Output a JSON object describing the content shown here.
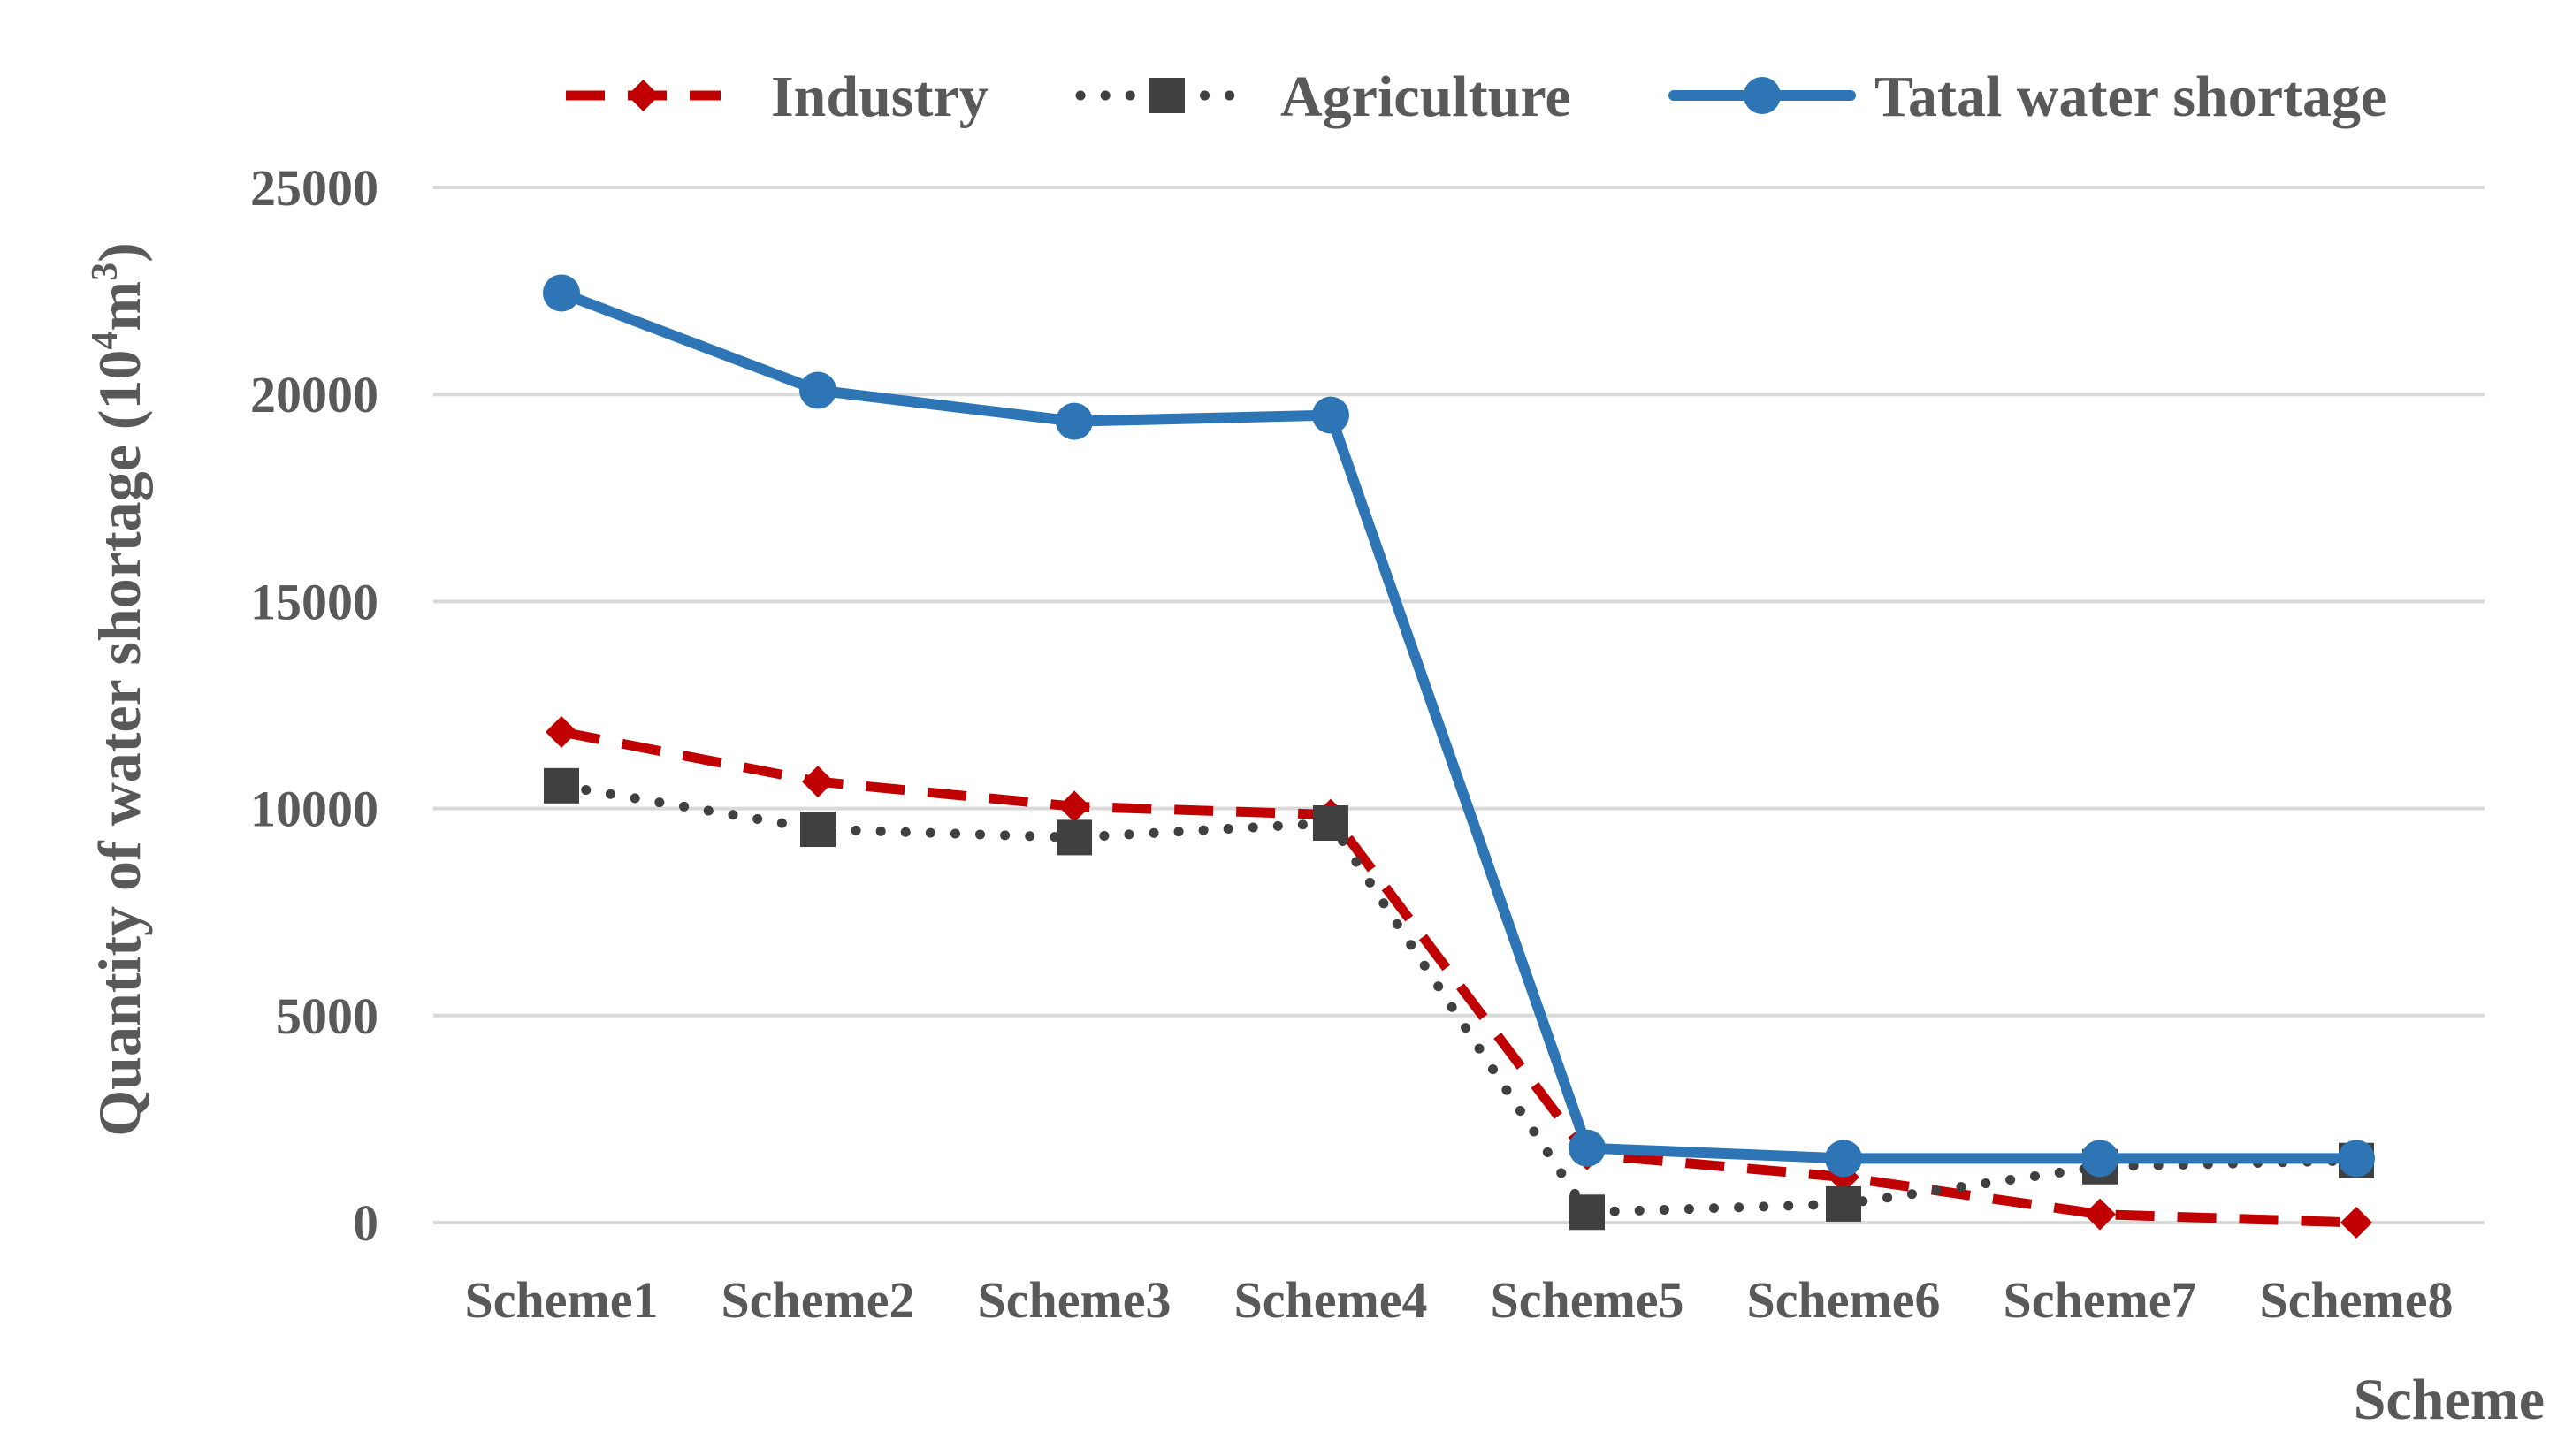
{
  "chart_data": {
    "type": "line",
    "title": "",
    "xlabel": "Scheme",
    "ylabel_main": "Quantity of water shortage (10",
    "ylabel_sup": "4",
    "ylabel_unit": "m",
    "ylabel_unit_sup": "3",
    "ylabel_close": ")",
    "ylim": [
      0,
      25000
    ],
    "yticks": [
      "0",
      "5000",
      "10000",
      "15000",
      "20000",
      "25000"
    ],
    "categories": [
      "Scheme1",
      "Scheme2",
      "Scheme3",
      "Scheme4",
      "Scheme5",
      "Scheme6",
      "Scheme7",
      "Scheme8"
    ],
    "legend_position": "top",
    "series": [
      {
        "name": "Industry",
        "color": "#c00000",
        "line_style": "dashed",
        "marker": "diamond",
        "values": [
          11850,
          10650,
          10050,
          9850,
          1650,
          1100,
          200,
          0
        ]
      },
      {
        "name": "Agriculture",
        "color": "#404040",
        "line_style": "dotted",
        "marker": "square",
        "values": [
          10550,
          9500,
          9300,
          9650,
          250,
          450,
          1350,
          1500
        ]
      },
      {
        "name": "Tatal water shortage",
        "color": "#2e75b6",
        "line_style": "solid",
        "marker": "circle",
        "values": [
          22450,
          20100,
          19350,
          19500,
          1800,
          1550,
          1550,
          1550
        ]
      }
    ]
  }
}
